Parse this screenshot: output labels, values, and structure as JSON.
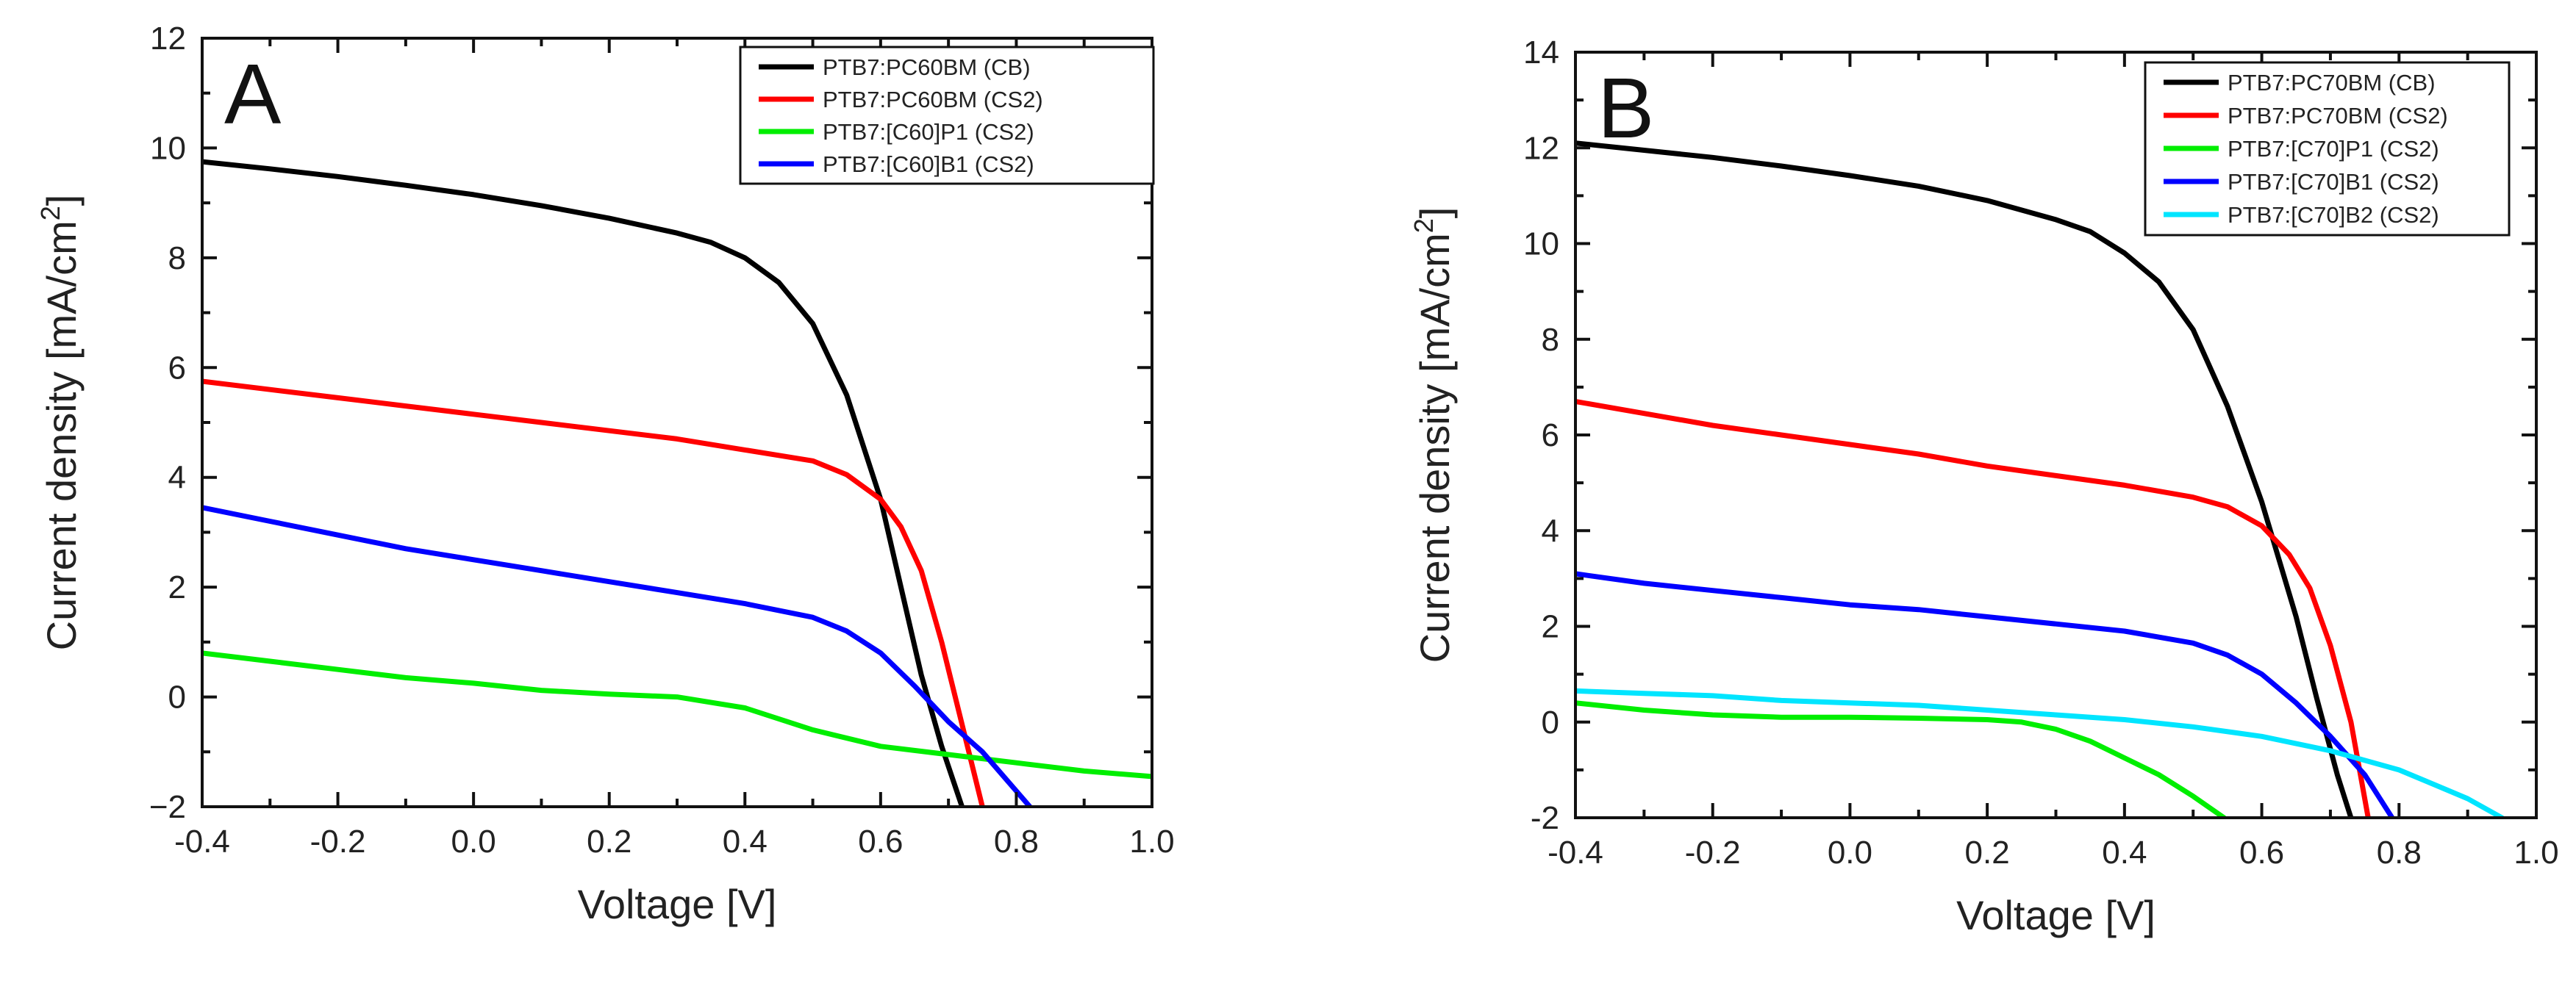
{
  "chart_data": [
    {
      "type": "line",
      "panel_label": "A",
      "xlabel": "Voltage [V]",
      "ylabel_base": "Current density [mA/cm",
      "ylabel_sup": "2",
      "ylabel_end": "]",
      "xlim": [
        -0.4,
        1.0
      ],
      "ylim": [
        -2,
        12
      ],
      "x_ticks": [
        -0.4,
        -0.2,
        0.0,
        0.2,
        0.4,
        0.6,
        0.8,
        1.0
      ],
      "x_tick_labels": [
        "-0.4",
        "-0.2",
        "0.0",
        "0.2",
        "0.4",
        "0.6",
        "0.8",
        "1.0"
      ],
      "y_ticks": [
        -2,
        0,
        2,
        4,
        6,
        8,
        10,
        12
      ],
      "y_tick_labels": [
        "−2",
        "0",
        "2",
        "4",
        "6",
        "8",
        "10",
        "12"
      ],
      "legend_position": "top-right",
      "series": [
        {
          "name": "PTB7:PC60BM (CB)",
          "color": "#000000",
          "x": [
            -0.4,
            -0.3,
            -0.2,
            -0.1,
            0.0,
            0.1,
            0.2,
            0.3,
            0.35,
            0.4,
            0.45,
            0.5,
            0.55,
            0.6,
            0.63,
            0.66,
            0.69,
            0.72
          ],
          "y": [
            9.75,
            9.62,
            9.48,
            9.32,
            9.15,
            8.95,
            8.72,
            8.45,
            8.28,
            8.0,
            7.55,
            6.8,
            5.5,
            3.6,
            2.0,
            0.4,
            -0.9,
            -2.0
          ]
        },
        {
          "name": "PTB7:PC60BM (CS2)",
          "color": "#ff0000",
          "x": [
            -0.4,
            -0.3,
            -0.2,
            -0.1,
            0.0,
            0.1,
            0.2,
            0.3,
            0.4,
            0.5,
            0.55,
            0.6,
            0.63,
            0.66,
            0.69,
            0.72,
            0.75
          ],
          "y": [
            5.75,
            5.6,
            5.45,
            5.3,
            5.15,
            5.0,
            4.85,
            4.7,
            4.5,
            4.3,
            4.05,
            3.6,
            3.1,
            2.3,
            1.0,
            -0.5,
            -2.0
          ]
        },
        {
          "name": "PTB7:[C60]P1 (CS2)",
          "color": "#00ee00",
          "x": [
            -0.4,
            -0.3,
            -0.2,
            -0.1,
            0.0,
            0.1,
            0.2,
            0.3,
            0.4,
            0.5,
            0.6,
            0.7,
            0.8,
            0.9,
            1.0
          ],
          "y": [
            0.8,
            0.65,
            0.5,
            0.35,
            0.25,
            0.12,
            0.05,
            0.0,
            -0.2,
            -0.6,
            -0.9,
            -1.05,
            -1.2,
            -1.35,
            -1.45
          ]
        },
        {
          "name": "PTB7:[C60]B1 (CS2)",
          "color": "#0000ff",
          "x": [
            -0.4,
            -0.3,
            -0.2,
            -0.1,
            0.0,
            0.1,
            0.2,
            0.3,
            0.4,
            0.5,
            0.55,
            0.6,
            0.65,
            0.7,
            0.75,
            0.82
          ],
          "y": [
            3.45,
            3.2,
            2.95,
            2.7,
            2.5,
            2.3,
            2.1,
            1.9,
            1.7,
            1.45,
            1.2,
            0.8,
            0.2,
            -0.45,
            -1.0,
            -2.0
          ]
        }
      ]
    },
    {
      "type": "line",
      "panel_label": "B",
      "xlabel": "Voltage [V]",
      "ylabel_base": "Current density [mA/cm",
      "ylabel_sup": "2",
      "ylabel_end": "]",
      "xlim": [
        -0.4,
        1.0
      ],
      "ylim": [
        -2,
        14
      ],
      "x_ticks": [
        -0.4,
        -0.2,
        0.0,
        0.2,
        0.4,
        0.6,
        0.8,
        1.0
      ],
      "x_tick_labels": [
        "-0.4",
        "-0.2",
        "0.0",
        "0.2",
        "0.4",
        "0.6",
        "0.8",
        "1.0"
      ],
      "y_ticks": [
        -2,
        0,
        2,
        4,
        6,
        8,
        10,
        12,
        14
      ],
      "y_tick_labels": [
        "-2",
        "0",
        "2",
        "4",
        "6",
        "8",
        "10",
        "12",
        "14"
      ],
      "legend_position": "top-right",
      "series": [
        {
          "name": "PTB7:PC70BM (CB)",
          "color": "#000000",
          "x": [
            -0.4,
            -0.3,
            -0.2,
            -0.1,
            0.0,
            0.1,
            0.2,
            0.3,
            0.35,
            0.4,
            0.45,
            0.5,
            0.55,
            0.6,
            0.65,
            0.68,
            0.71,
            0.73
          ],
          "y": [
            12.1,
            11.95,
            11.8,
            11.62,
            11.42,
            11.2,
            10.9,
            10.5,
            10.25,
            9.8,
            9.2,
            8.2,
            6.6,
            4.6,
            2.2,
            0.5,
            -1.1,
            -2.0
          ]
        },
        {
          "name": "PTB7:PC70BM (CS2)",
          "color": "#ff0000",
          "x": [
            -0.4,
            -0.3,
            -0.2,
            -0.1,
            0.0,
            0.1,
            0.2,
            0.3,
            0.4,
            0.5,
            0.55,
            0.6,
            0.64,
            0.67,
            0.7,
            0.73,
            0.755
          ],
          "y": [
            6.7,
            6.45,
            6.2,
            6.0,
            5.8,
            5.6,
            5.35,
            5.15,
            4.95,
            4.7,
            4.5,
            4.1,
            3.5,
            2.8,
            1.6,
            0.0,
            -2.0
          ]
        },
        {
          "name": "PTB7:[C70]P1 (CS2)",
          "color": "#00ee00",
          "x": [
            -0.4,
            -0.3,
            -0.2,
            -0.1,
            0.0,
            0.1,
            0.2,
            0.25,
            0.3,
            0.35,
            0.4,
            0.45,
            0.5,
            0.545
          ],
          "y": [
            0.4,
            0.25,
            0.15,
            0.1,
            0.1,
            0.08,
            0.05,
            0.0,
            -0.15,
            -0.4,
            -0.75,
            -1.1,
            -1.55,
            -2.0
          ]
        },
        {
          "name": "PTB7:[C70]B1 (CS2)",
          "color": "#0000ff",
          "x": [
            -0.4,
            -0.3,
            -0.2,
            -0.1,
            0.0,
            0.1,
            0.2,
            0.3,
            0.4,
            0.5,
            0.55,
            0.6,
            0.65,
            0.7,
            0.75,
            0.79
          ],
          "y": [
            3.1,
            2.9,
            2.75,
            2.6,
            2.45,
            2.35,
            2.2,
            2.05,
            1.9,
            1.65,
            1.4,
            1.0,
            0.4,
            -0.3,
            -1.1,
            -2.0
          ]
        },
        {
          "name": "PTB7:[C70]B2 (CS2)",
          "color": "#00e5ff",
          "x": [
            -0.4,
            -0.3,
            -0.2,
            -0.1,
            0.0,
            0.1,
            0.2,
            0.3,
            0.4,
            0.5,
            0.6,
            0.7,
            0.8,
            0.85,
            0.9,
            0.95
          ],
          "y": [
            0.65,
            0.6,
            0.55,
            0.45,
            0.4,
            0.35,
            0.25,
            0.15,
            0.05,
            -0.1,
            -0.3,
            -0.6,
            -1.0,
            -1.3,
            -1.6,
            -2.0
          ]
        }
      ]
    }
  ]
}
